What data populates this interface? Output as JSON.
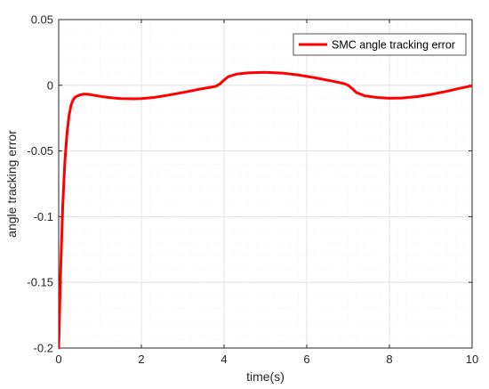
{
  "chart_data": {
    "type": "line",
    "title": "",
    "xlabel": "time(s)",
    "ylabel": "angle tracking error",
    "xlim": [
      0,
      10
    ],
    "ylim": [
      -0.2,
      0.05
    ],
    "x_ticks": [
      0,
      2,
      4,
      6,
      8,
      10
    ],
    "x_tick_labels": [
      "0",
      "2",
      "4",
      "6",
      "8",
      "10"
    ],
    "y_ticks": [
      -0.2,
      -0.15,
      -0.1,
      -0.05,
      0,
      0.05
    ],
    "y_tick_labels": [
      "-0.2",
      "-0.15",
      "-0.1",
      "-0.05",
      "0",
      "0.05"
    ],
    "grid": true,
    "minor_grid": true,
    "legend_position": "top-right",
    "series": [
      {
        "name": "SMC angle tracking error",
        "color": "#ff0000",
        "x": [
          0,
          0.05,
          0.1,
          0.15,
          0.2,
          0.25,
          0.3,
          0.35,
          0.4,
          0.5,
          0.6,
          0.7,
          0.8,
          1.0,
          1.2,
          1.5,
          1.8,
          2.0,
          2.3,
          2.6,
          3.0,
          3.4,
          3.8,
          3.9,
          4.0,
          4.1,
          4.3,
          4.6,
          5.0,
          5.4,
          5.8,
          6.2,
          6.6,
          6.9,
          7.0,
          7.1,
          7.2,
          7.4,
          7.7,
          8.0,
          8.3,
          8.7,
          9.0,
          9.4,
          9.7,
          10.0
        ],
        "y": [
          -0.2,
          -0.138,
          -0.09,
          -0.058,
          -0.037,
          -0.023,
          -0.015,
          -0.011,
          -0.009,
          -0.0075,
          -0.0067,
          -0.0068,
          -0.0073,
          -0.0084,
          -0.0093,
          -0.0101,
          -0.0103,
          -0.0101,
          -0.0093,
          -0.0078,
          -0.0055,
          -0.003,
          -0.0008,
          0.001,
          0.004,
          0.0065,
          0.0085,
          0.0095,
          0.0099,
          0.0093,
          0.0078,
          0.0057,
          0.0033,
          0.0013,
          0.0,
          -0.0025,
          -0.0055,
          -0.008,
          -0.0093,
          -0.0099,
          -0.0097,
          -0.0085,
          -0.007,
          -0.0045,
          -0.0023,
          -0.0004
        ]
      }
    ]
  }
}
